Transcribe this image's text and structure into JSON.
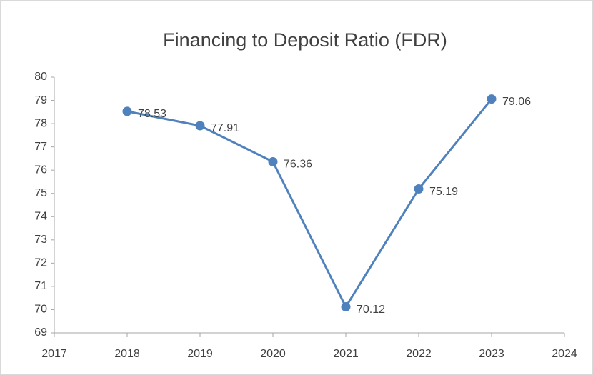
{
  "chart_data": {
    "type": "line",
    "title": "Financing to Deposit Ratio (FDR)",
    "x": [
      2018,
      2019,
      2020,
      2021,
      2022,
      2023
    ],
    "series": [
      {
        "name": "FDR",
        "color": "#4f81bd",
        "values": [
          78.53,
          77.91,
          76.36,
          70.12,
          75.19,
          79.06
        ]
      }
    ],
    "xlim": [
      2017,
      2024
    ],
    "xticks": [
      2017,
      2018,
      2019,
      2020,
      2021,
      2022,
      2023,
      2024
    ],
    "ylim": [
      69,
      80
    ],
    "yticks": [
      69,
      70,
      71,
      72,
      73,
      74,
      75,
      76,
      77,
      78,
      79,
      80
    ],
    "grid": false,
    "legend": false
  }
}
